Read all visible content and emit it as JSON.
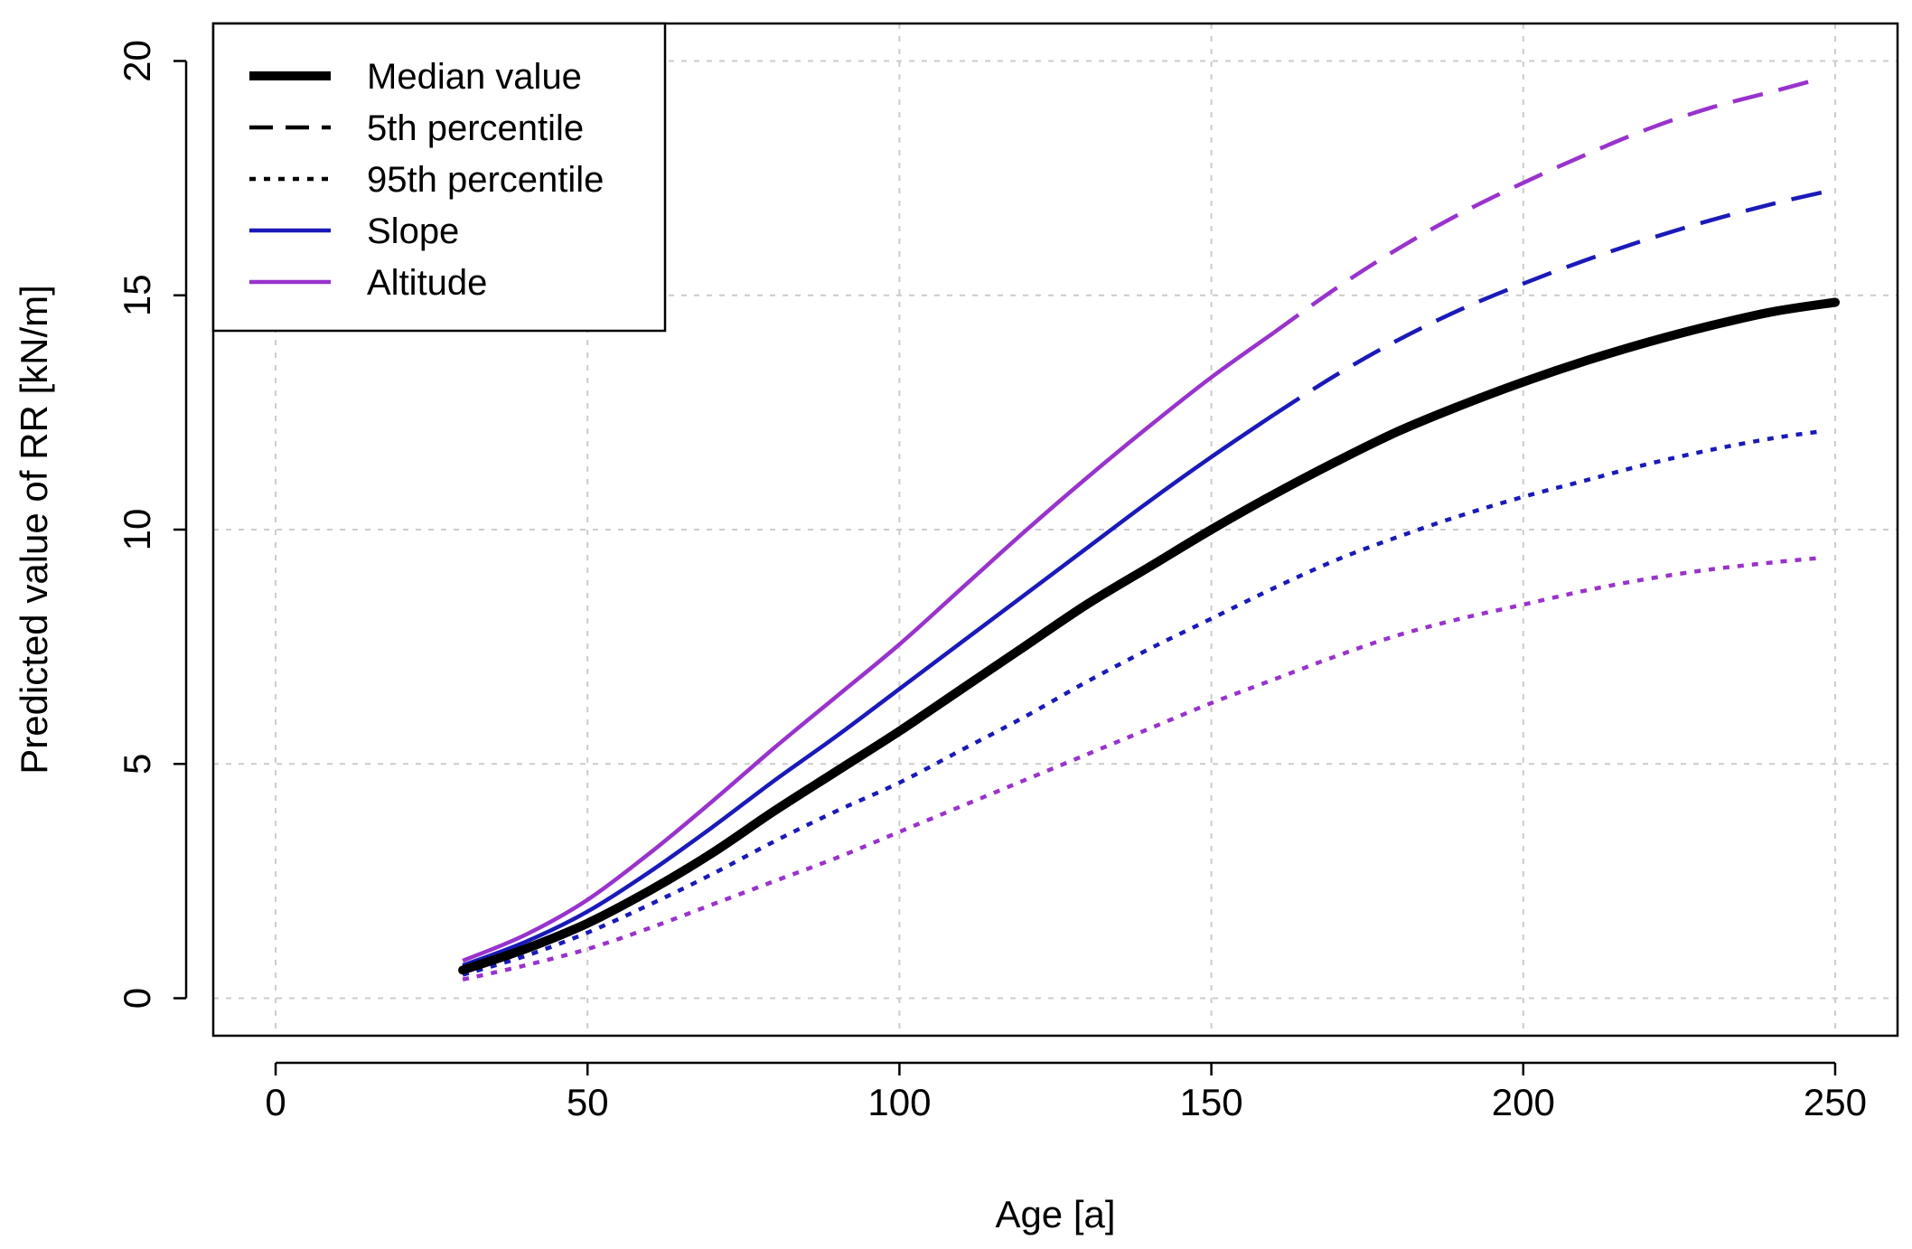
{
  "chart_data": {
    "type": "line",
    "title": "",
    "xlabel": "Age [a]",
    "ylabel": "Predicted value of RR [kN/m]",
    "xlim": [
      -10,
      260
    ],
    "ylim": [
      -0.8,
      20.8
    ],
    "x_ticks": [
      0,
      50,
      100,
      150,
      200,
      250
    ],
    "y_ticks": [
      0,
      5,
      10,
      15,
      20
    ],
    "x_tick_labels": [
      "0",
      "50",
      "100",
      "150",
      "200",
      "250"
    ],
    "y_tick_labels": [
      "0",
      "5",
      "10",
      "15",
      "20"
    ],
    "grid": true,
    "legend_position": "top-left",
    "legend": [
      {
        "label": "Median value",
        "color": "#000000",
        "style": "solid",
        "weight": "thick"
      },
      {
        "label": "5th percentile",
        "color": "#000000",
        "style": "dashed",
        "weight": "normal"
      },
      {
        "label": "95th percentile",
        "color": "#000000",
        "style": "dotted",
        "weight": "normal"
      },
      {
        "label": "Slope",
        "color": "#1a1ab8",
        "style": "solid",
        "weight": "normal"
      },
      {
        "label": "Altitude",
        "color": "#9933cc",
        "style": "solid",
        "weight": "normal"
      }
    ],
    "x": [
      30,
      40,
      50,
      60,
      70,
      80,
      90,
      100,
      110,
      120,
      130,
      140,
      150,
      160,
      170,
      180,
      190,
      200,
      210,
      220,
      230,
      240,
      250
    ],
    "series": [
      {
        "name": "Median value",
        "color": "#000000",
        "style": "solid",
        "weight": "thick",
        "segments": [
          {
            "x": [
              30,
              40,
              50,
              60,
              70,
              80,
              90,
              100,
              110,
              120,
              130,
              140,
              150,
              160,
              170,
              180,
              190,
              200,
              210,
              220,
              230,
              240,
              250
            ],
            "y": [
              0.6,
              1.05,
              1.6,
              2.3,
              3.1,
              4.0,
              4.85,
              5.7,
              6.6,
              7.5,
              8.4,
              9.2,
              10.0,
              10.75,
              11.45,
              12.1,
              12.65,
              13.15,
              13.6,
              14.0,
              14.35,
              14.65,
              14.85
            ]
          }
        ]
      },
      {
        "name": "Slope - 5th percentile",
        "color": "#1a1ab8",
        "style": "solid",
        "weight": "normal",
        "segments": [
          {
            "x": [
              30,
              40,
              50,
              60,
              70,
              80,
              90,
              100,
              110,
              120,
              130,
              140,
              150,
              160
            ],
            "y": [
              0.7,
              1.2,
              1.85,
              2.7,
              3.65,
              4.65,
              5.6,
              6.6,
              7.6,
              8.6,
              9.6,
              10.6,
              11.55,
              12.45
            ]
          },
          {
            "x": [
              160,
              170,
              180,
              190,
              200,
              210,
              220,
              230,
              240,
              248
            ],
            "y": [
              12.45,
              13.3,
              14.05,
              14.7,
              15.25,
              15.75,
              16.2,
              16.6,
              16.95,
              17.2
            ],
            "style": "dashed"
          }
        ]
      },
      {
        "name": "Altitude - 5th percentile",
        "color": "#9933cc",
        "style": "solid",
        "weight": "normal",
        "segments": [
          {
            "x": [
              30,
              40,
              50,
              60,
              70,
              80,
              90,
              100,
              110,
              120,
              130,
              140,
              150,
              160
            ],
            "y": [
              0.8,
              1.35,
              2.1,
              3.1,
              4.2,
              5.35,
              6.45,
              7.55,
              8.75,
              9.95,
              11.1,
              12.2,
              13.25,
              14.2
            ]
          },
          {
            "x": [
              160,
              170,
              180,
              190,
              200,
              210,
              220,
              230,
              240,
              247
            ],
            "y": [
              14.2,
              15.15,
              16.0,
              16.75,
              17.4,
              18.0,
              18.55,
              19.0,
              19.35,
              19.6
            ],
            "style": "dashed"
          }
        ]
      },
      {
        "name": "Slope - 95th percentile",
        "color": "#1a1ab8",
        "style": "dotted",
        "weight": "normal",
        "segments": [
          {
            "x": [
              30,
              40,
              50,
              60,
              70,
              80,
              90,
              100,
              110,
              120,
              130,
              140,
              150,
              160,
              170,
              180,
              190,
              200,
              210,
              220,
              230,
              240,
              248
            ],
            "y": [
              0.5,
              0.9,
              1.4,
              2.0,
              2.65,
              3.35,
              4.0,
              4.6,
              5.3,
              6.0,
              6.75,
              7.45,
              8.1,
              8.75,
              9.35,
              9.85,
              10.3,
              10.7,
              11.05,
              11.4,
              11.7,
              11.95,
              12.1
            ]
          }
        ]
      },
      {
        "name": "Altitude - 95th percentile",
        "color": "#9933cc",
        "style": "dotted",
        "weight": "normal",
        "segments": [
          {
            "x": [
              30,
              40,
              50,
              60,
              70,
              80,
              90,
              100,
              110,
              120,
              130,
              140,
              150,
              160,
              170,
              180,
              190,
              200,
              210,
              220,
              230,
              240,
              248
            ],
            "y": [
              0.4,
              0.7,
              1.05,
              1.5,
              2.0,
              2.5,
              3.0,
              3.55,
              4.1,
              4.65,
              5.2,
              5.75,
              6.3,
              6.8,
              7.3,
              7.75,
              8.1,
              8.4,
              8.7,
              8.95,
              9.15,
              9.3,
              9.4
            ]
          }
        ]
      }
    ]
  }
}
